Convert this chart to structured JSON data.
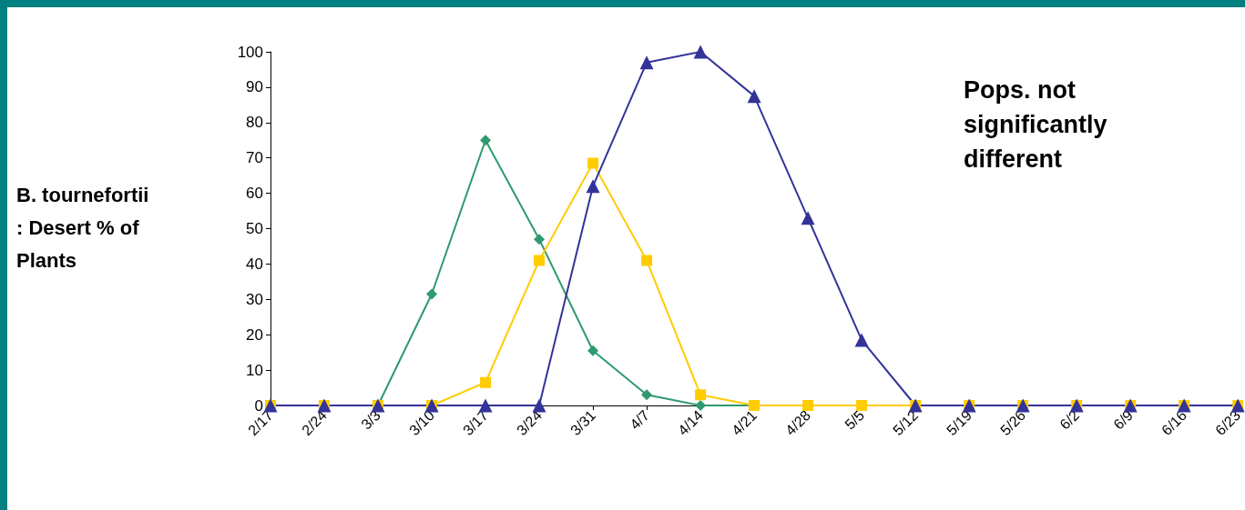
{
  "chart_data": {
    "type": "line",
    "ylabel": "B. tournefortii : Desert % of Plants",
    "annotations": [
      "Pops. not significantly different"
    ],
    "categories": [
      "2/17",
      "2/24",
      "3/3",
      "3/10",
      "3/17",
      "3/24",
      "3/31",
      "4/7",
      "4/14",
      "4/21",
      "4/28",
      "5/5",
      "5/12",
      "5/19",
      "5/26",
      "6/2",
      "6/9",
      "6/16",
      "6/23"
    ],
    "ylim": [
      0,
      100
    ],
    "yticks": [
      0,
      10,
      20,
      30,
      40,
      50,
      60,
      70,
      80,
      90,
      100
    ],
    "grid": false,
    "line_style": "solid",
    "series": [
      {
        "color": "#2e9a6e",
        "marker": "diamond",
        "values": [
          null,
          null,
          0,
          31.5,
          75,
          47,
          15.5,
          3,
          0,
          0,
          null,
          null,
          null,
          null,
          null,
          null,
          null,
          null,
          null
        ]
      },
      {
        "color": "#ffcc00",
        "marker": "square",
        "values": [
          0,
          0,
          0,
          0,
          6.5,
          41,
          68.5,
          41,
          3,
          0,
          0,
          0,
          0,
          0,
          0,
          0,
          0,
          0,
          0
        ]
      },
      {
        "color": "#333399",
        "marker": "triangle",
        "values": [
          0,
          0,
          0,
          0,
          0,
          0,
          62,
          97,
          100,
          87.5,
          53,
          18.5,
          0,
          0,
          0,
          0,
          0,
          0,
          0
        ]
      }
    ]
  }
}
